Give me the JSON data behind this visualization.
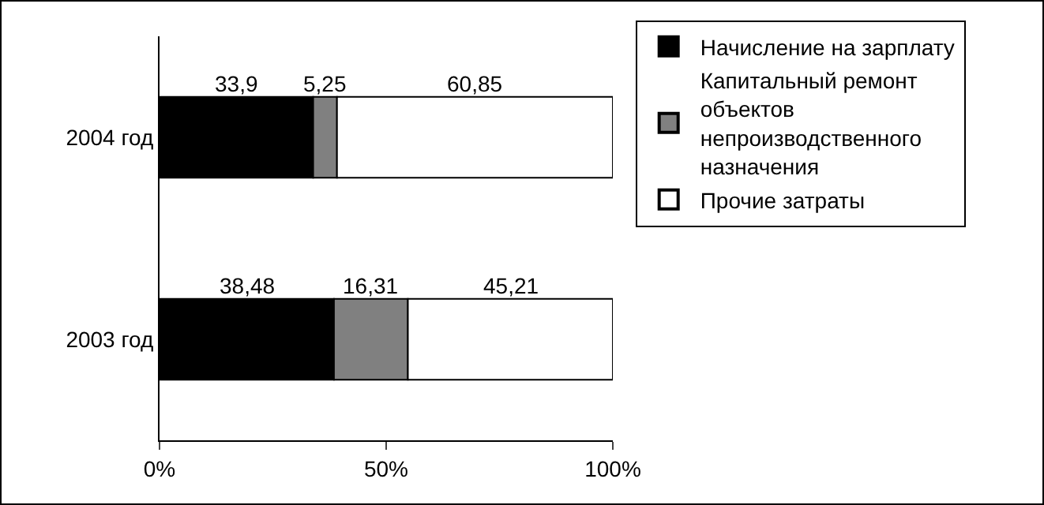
{
  "chart_data": {
    "type": "bar",
    "orientation": "horizontal",
    "stacked": true,
    "categories": [
      "2004 год",
      "2003 год"
    ],
    "series": [
      {
        "name": "Начисление на зарплату",
        "color": "#000000",
        "values": [
          33.9,
          38.48
        ],
        "value_labels": [
          "33,9",
          "38,48"
        ]
      },
      {
        "name": "Капитальный ремонт объектов непроизводственного назначения",
        "color": "#808080",
        "values": [
          5.25,
          16.31
        ],
        "value_labels": [
          "5,25",
          "16,31"
        ]
      },
      {
        "name": "Прочие затраты",
        "color": "#ffffff",
        "values": [
          60.85,
          45.21
        ],
        "value_labels": [
          "60,85",
          "45,21"
        ]
      }
    ],
    "xlim": [
      0,
      100
    ],
    "xticks": [
      {
        "value": 0,
        "label": "0%"
      },
      {
        "value": 50,
        "label": "50%"
      },
      {
        "value": 100,
        "label": "100%"
      }
    ],
    "grid": false,
    "legend": "right"
  }
}
